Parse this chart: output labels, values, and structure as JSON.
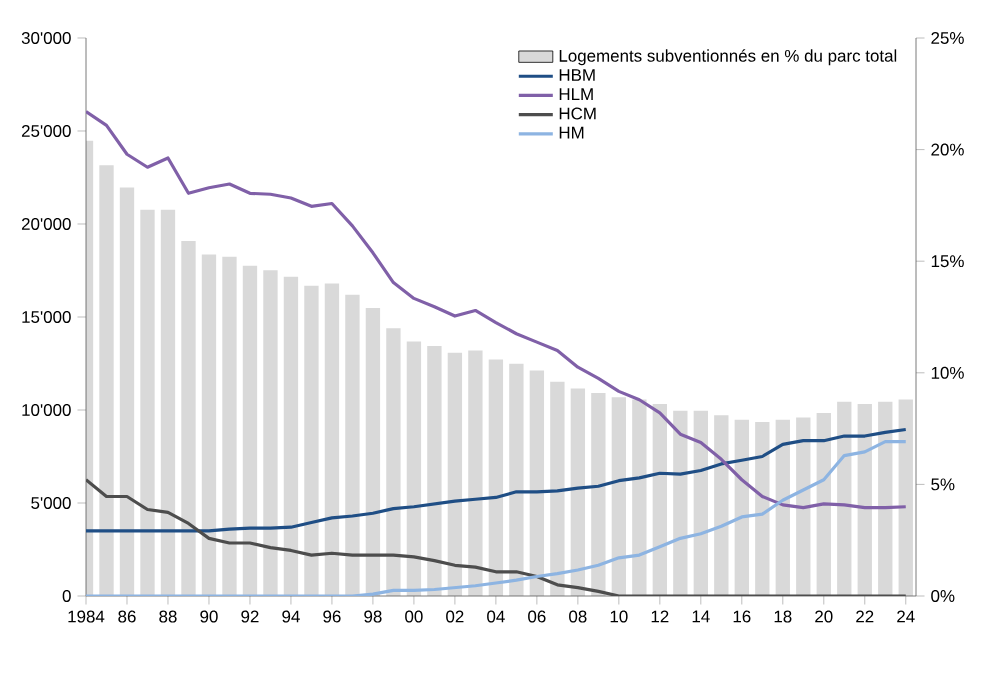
{
  "chart_data": {
    "type": "line",
    "x": [
      1984,
      1985,
      1986,
      1987,
      1988,
      1989,
      1990,
      1991,
      1992,
      1993,
      1994,
      1995,
      1996,
      1997,
      1998,
      1999,
      2000,
      2001,
      2002,
      2003,
      2004,
      2005,
      2006,
      2007,
      2008,
      2009,
      2010,
      2011,
      2012,
      2013,
      2014,
      2015,
      2016,
      2017,
      2018,
      2019,
      2020,
      2021,
      2022,
      2023,
      2024
    ],
    "series": [
      {
        "name": "Logements subventionnés en % du parc total",
        "type": "bar",
        "axis": "y2",
        "color": "#d9d9d9",
        "values": [
          20.4,
          19.3,
          18.3,
          17.3,
          17.3,
          15.9,
          15.3,
          15.2,
          14.8,
          14.6,
          14.3,
          13.9,
          14.0,
          13.5,
          12.9,
          12.0,
          11.4,
          11.2,
          10.9,
          11.0,
          10.6,
          10.4,
          10.1,
          9.6,
          9.3,
          9.1,
          8.9,
          8.8,
          8.6,
          8.3,
          8.3,
          8.1,
          7.9,
          7.8,
          7.9,
          8.0,
          8.2,
          8.7,
          8.6,
          8.7,
          8.8
        ]
      },
      {
        "name": "HBM",
        "color": "#1f4e85",
        "values": [
          3500,
          3500,
          3500,
          3500,
          3500,
          3500,
          3500,
          3600,
          3650,
          3650,
          3700,
          3950,
          4200,
          4300,
          4450,
          4700,
          4800,
          4950,
          5100,
          5200,
          5300,
          5600,
          5600,
          5650,
          5800,
          5900,
          6200,
          6350,
          6600,
          6550,
          6750,
          7100,
          7300,
          7500,
          8150,
          8350,
          8350,
          8600,
          8600,
          8800,
          8950
        ]
      },
      {
        "name": "HLM",
        "color": "#8060a8",
        "values": [
          26050,
          25300,
          23750,
          23050,
          23550,
          21650,
          21950,
          22150,
          21650,
          21600,
          21400,
          20950,
          21100,
          19900,
          18450,
          16850,
          16000,
          15550,
          15050,
          15350,
          14700,
          14100,
          13650,
          13200,
          12300,
          11700,
          11000,
          10550,
          9850,
          8700,
          8250,
          7350,
          6250,
          5350,
          4900,
          4750,
          4950,
          4900,
          4750,
          4750,
          4800
        ]
      },
      {
        "name": "HCM",
        "color": "#4d4d4d",
        "values": [
          6250,
          5350,
          5350,
          4650,
          4500,
          3900,
          3100,
          2850,
          2850,
          2600,
          2450,
          2200,
          2300,
          2200,
          2200,
          2200,
          2100,
          1900,
          1650,
          1550,
          1300,
          1300,
          1050,
          600,
          450,
          250,
          0,
          0,
          0,
          0,
          0,
          0,
          0,
          0,
          0,
          0,
          0,
          0,
          0,
          0,
          0
        ]
      },
      {
        "name": "HM",
        "color": "#8db4e2",
        "values": [
          0,
          0,
          0,
          0,
          0,
          0,
          0,
          0,
          0,
          0,
          0,
          0,
          0,
          0,
          100,
          300,
          300,
          350,
          450,
          550,
          700,
          850,
          1050,
          1200,
          1400,
          1650,
          2050,
          2200,
          2650,
          3100,
          3350,
          3750,
          4250,
          4400,
          5150,
          5700,
          6250,
          7550,
          7750,
          8300,
          8300
        ]
      }
    ],
    "xlim": [
      1984,
      2024.5
    ],
    "xticks": [
      1984,
      {
        "value": 1986,
        "label": "86"
      },
      {
        "value": 1988,
        "label": "88"
      },
      {
        "value": 1990,
        "label": "90"
      },
      {
        "value": 1992,
        "label": "92"
      },
      {
        "value": 1994,
        "label": "94"
      },
      {
        "value": 1996,
        "label": "96"
      },
      {
        "value": 1998,
        "label": "98"
      },
      {
        "value": 2000,
        "label": "00"
      },
      {
        "value": 2002,
        "label": "02"
      },
      {
        "value": 2004,
        "label": "04"
      },
      {
        "value": 2006,
        "label": "06"
      },
      {
        "value": 2008,
        "label": "08"
      },
      {
        "value": 2010,
        "label": "10"
      },
      {
        "value": 2012,
        "label": "12"
      },
      {
        "value": 2014,
        "label": "14"
      },
      {
        "value": 2016,
        "label": "16"
      },
      {
        "value": 2018,
        "label": "18"
      },
      {
        "value": 2020,
        "label": "20"
      },
      {
        "value": 2022,
        "label": "22"
      },
      {
        "value": 2024,
        "label": "24"
      }
    ],
    "ylim": [
      0,
      30000
    ],
    "yticks": [
      0,
      {
        "value": 5000,
        "label": "5'000"
      },
      {
        "value": 10000,
        "label": "10'000"
      },
      {
        "value": 15000,
        "label": "15'000"
      },
      {
        "value": 20000,
        "label": "20'000"
      },
      {
        "value": 25000,
        "label": "25'000"
      },
      {
        "value": 30000,
        "label": "30'000"
      }
    ],
    "y2lim": [
      0,
      25
    ],
    "y2ticks": [
      {
        "value": 0,
        "label": "0%"
      },
      {
        "value": 5,
        "label": "5%"
      },
      {
        "value": 10,
        "label": "10%"
      },
      {
        "value": 15,
        "label": "15%"
      },
      {
        "value": 20,
        "label": "20%"
      },
      {
        "value": 25,
        "label": "25%"
      }
    ],
    "legend": "top right"
  }
}
